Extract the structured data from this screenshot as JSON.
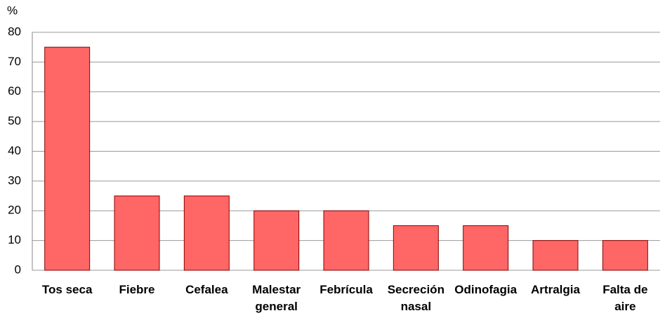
{
  "chart_data": {
    "type": "bar",
    "y_label": "%",
    "categories": [
      "Tos seca",
      "Fiebre",
      "Cefalea",
      "Malestar general",
      "Febrícula",
      "Secreción nasal",
      "Odinofagia",
      "Artralgia",
      "Falta de aire"
    ],
    "values": [
      75,
      25,
      25,
      20,
      20,
      15,
      15,
      10,
      10
    ],
    "color": "#ff6666",
    "ylim": [
      0,
      80
    ],
    "yticks": [
      0,
      10,
      20,
      30,
      40,
      50,
      60,
      70,
      80
    ],
    "grid": true
  }
}
